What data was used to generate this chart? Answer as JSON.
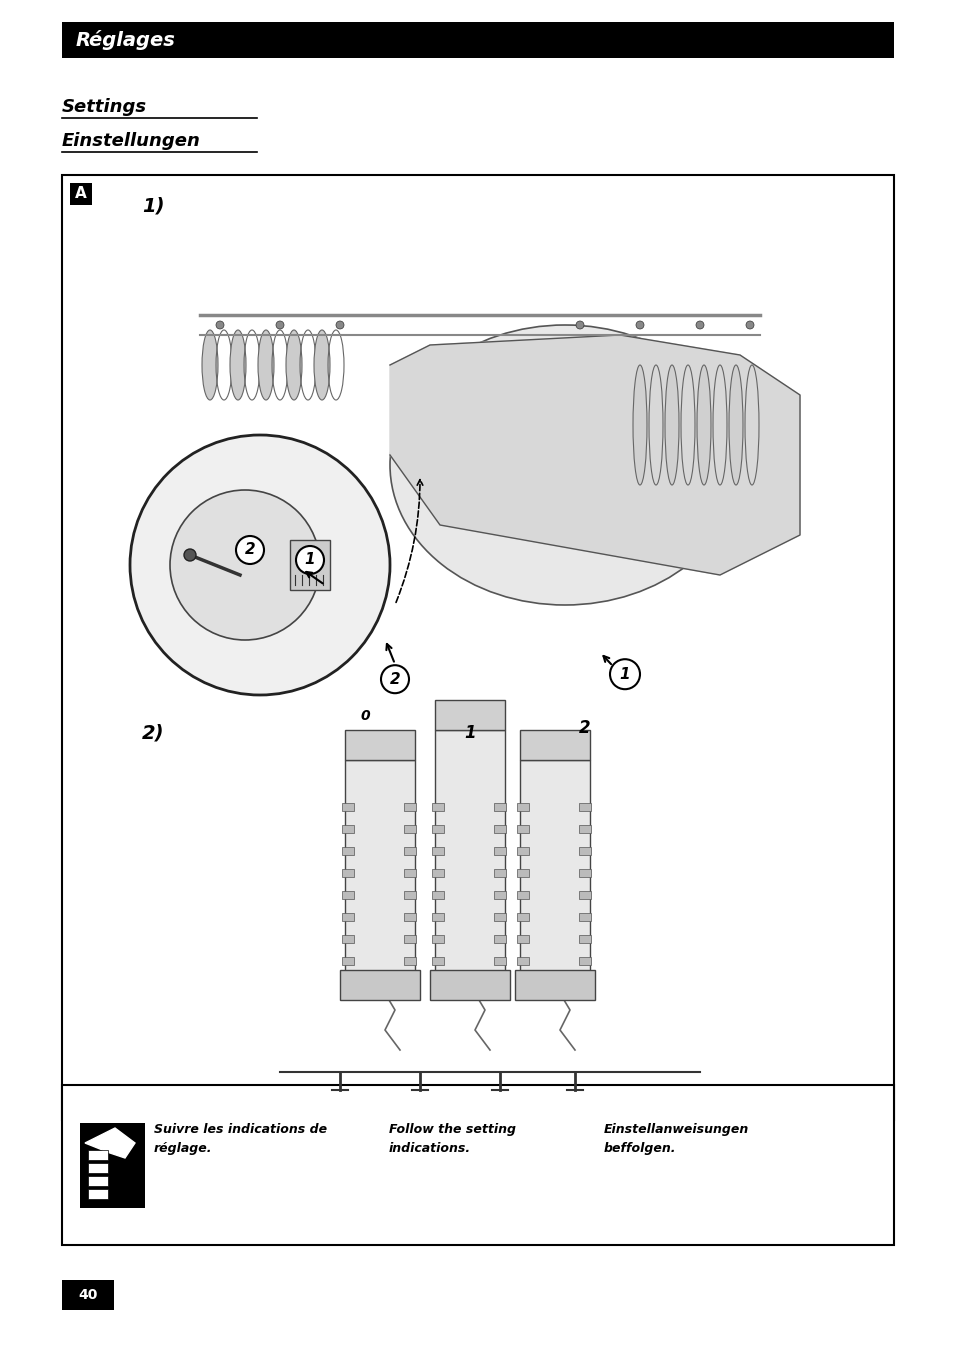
{
  "page_bg": "#ffffff",
  "header_bg": "#000000",
  "header_text": "Réglages",
  "header_text_color": "#ffffff",
  "header_font_size": 14,
  "section1_title": "Settings",
  "section2_title": "Einstellungen",
  "section_font_size": 13,
  "section_underline_color": "#000000",
  "page_number": "40",
  "page_number_bg": "#000000",
  "page_number_color": "#ffffff",
  "footer_text1": "Suivre les indications de\nréglage.",
  "footer_text2": "Follow the setting\nindications.",
  "footer_text3": "Einstellanweisungen\nbeffolgen.",
  "footer_font_size": 9,
  "main_box_border": "#000000",
  "label_A": "A",
  "label_1_italic": "1)",
  "label_2_italic": "2)"
}
